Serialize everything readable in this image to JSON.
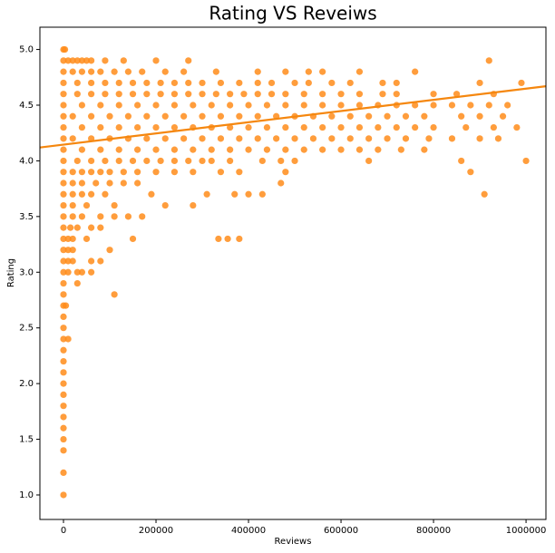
{
  "chart_data": {
    "type": "scatter",
    "title": "Rating VS Reveiws",
    "x_label": "Reviews",
    "y_label": "Rating",
    "color": "#ff8c1a",
    "x": [
      0,
      3000,
      0,
      10000,
      20000,
      30000,
      40000,
      50000,
      60000,
      90000,
      130000,
      200000,
      270000,
      920000,
      0,
      20000,
      40000,
      60000,
      80000,
      110000,
      140000,
      170000,
      220000,
      260000,
      330000,
      420000,
      480000,
      530000,
      560000,
      640000,
      760000,
      0,
      30000,
      60000,
      90000,
      120000,
      150000,
      180000,
      210000,
      240000,
      270000,
      300000,
      340000,
      380000,
      420000,
      450000,
      500000,
      530000,
      580000,
      620000,
      690000,
      720000,
      900000,
      990000,
      0,
      30000,
      60000,
      90000,
      120000,
      150000,
      180000,
      210000,
      240000,
      270000,
      300000,
      330000,
      360000,
      390000,
      420000,
      450000,
      480000,
      520000,
      560000,
      600000,
      640000,
      690000,
      720000,
      800000,
      850000,
      930000,
      0,
      40000,
      80000,
      120000,
      160000,
      200000,
      240000,
      280000,
      320000,
      360000,
      400000,
      440000,
      480000,
      520000,
      560000,
      600000,
      640000,
      680000,
      720000,
      760000,
      800000,
      840000,
      880000,
      920000,
      960000,
      0,
      20000,
      60000,
      100000,
      140000,
      180000,
      220000,
      260000,
      300000,
      340000,
      380000,
      420000,
      460000,
      500000,
      540000,
      580000,
      620000,
      660000,
      700000,
      740000,
      780000,
      860000,
      900000,
      950000,
      0,
      40000,
      80000,
      120000,
      160000,
      200000,
      240000,
      280000,
      320000,
      360000,
      400000,
      440000,
      480000,
      520000,
      560000,
      600000,
      640000,
      680000,
      720000,
      760000,
      800000,
      870000,
      930000,
      980000,
      0,
      20000,
      60000,
      100000,
      140000,
      180000,
      220000,
      260000,
      300000,
      340000,
      380000,
      420000,
      460000,
      500000,
      540000,
      580000,
      620000,
      660000,
      700000,
      740000,
      790000,
      840000,
      900000,
      940000,
      0,
      40000,
      80000,
      120000,
      160000,
      200000,
      240000,
      280000,
      320000,
      360000,
      400000,
      440000,
      480000,
      520000,
      560000,
      600000,
      640000,
      680000,
      730000,
      780000,
      0,
      30000,
      60000,
      90000,
      120000,
      150000,
      180000,
      210000,
      240000,
      270000,
      300000,
      320000,
      360000,
      430000,
      470000,
      500000,
      660000,
      860000,
      1000000,
      0,
      20000,
      40000,
      60000,
      80000,
      100000,
      130000,
      160000,
      200000,
      240000,
      280000,
      340000,
      380000,
      480000,
      880000,
      0,
      20000,
      40000,
      70000,
      100000,
      130000,
      160000,
      470000,
      0,
      20000,
      40000,
      60000,
      90000,
      190000,
      310000,
      370000,
      400000,
      430000,
      910000,
      0,
      20000,
      50000,
      110000,
      220000,
      280000,
      0,
      20000,
      40000,
      80000,
      110000,
      140000,
      170000,
      0,
      15000,
      30000,
      60000,
      80000,
      0,
      10000,
      20000,
      50000,
      150000,
      335000,
      355000,
      380000,
      0,
      10000,
      20000,
      100000,
      0,
      10000,
      20000,
      60000,
      80000,
      0,
      10000,
      30000,
      40000,
      60000,
      0,
      30000,
      0,
      110000,
      0,
      5000,
      0,
      0,
      0,
      10000,
      0,
      0,
      0,
      0,
      0,
      0,
      0,
      0,
      0,
      0,
      0,
      0
    ],
    "values": [
      5.0,
      5.0,
      4.9,
      4.9,
      4.9,
      4.9,
      4.9,
      4.9,
      4.9,
      4.9,
      4.9,
      4.9,
      4.9,
      4.9,
      4.8,
      4.8,
      4.8,
      4.8,
      4.8,
      4.8,
      4.8,
      4.8,
      4.8,
      4.8,
      4.8,
      4.8,
      4.8,
      4.8,
      4.8,
      4.8,
      4.8,
      4.7,
      4.7,
      4.7,
      4.7,
      4.7,
      4.7,
      4.7,
      4.7,
      4.7,
      4.7,
      4.7,
      4.7,
      4.7,
      4.7,
      4.7,
      4.7,
      4.7,
      4.7,
      4.7,
      4.7,
      4.7,
      4.7,
      4.7,
      4.6,
      4.6,
      4.6,
      4.6,
      4.6,
      4.6,
      4.6,
      4.6,
      4.6,
      4.6,
      4.6,
      4.6,
      4.6,
      4.6,
      4.6,
      4.6,
      4.6,
      4.6,
      4.6,
      4.6,
      4.6,
      4.6,
      4.6,
      4.6,
      4.6,
      4.6,
      4.5,
      4.5,
      4.5,
      4.5,
      4.5,
      4.5,
      4.5,
      4.5,
      4.5,
      4.5,
      4.5,
      4.5,
      4.5,
      4.5,
      4.5,
      4.5,
      4.5,
      4.5,
      4.5,
      4.5,
      4.5,
      4.5,
      4.5,
      4.5,
      4.5,
      4.4,
      4.4,
      4.4,
      4.4,
      4.4,
      4.4,
      4.4,
      4.4,
      4.4,
      4.4,
      4.4,
      4.4,
      4.4,
      4.4,
      4.4,
      4.4,
      4.4,
      4.4,
      4.4,
      4.4,
      4.4,
      4.4,
      4.4,
      4.4,
      4.3,
      4.3,
      4.3,
      4.3,
      4.3,
      4.3,
      4.3,
      4.3,
      4.3,
      4.3,
      4.3,
      4.3,
      4.3,
      4.3,
      4.3,
      4.3,
      4.3,
      4.3,
      4.3,
      4.3,
      4.3,
      4.3,
      4.3,
      4.3,
      4.2,
      4.2,
      4.2,
      4.2,
      4.2,
      4.2,
      4.2,
      4.2,
      4.2,
      4.2,
      4.2,
      4.2,
      4.2,
      4.2,
      4.2,
      4.2,
      4.2,
      4.2,
      4.2,
      4.2,
      4.2,
      4.2,
      4.2,
      4.2,
      4.1,
      4.1,
      4.1,
      4.1,
      4.1,
      4.1,
      4.1,
      4.1,
      4.1,
      4.1,
      4.1,
      4.1,
      4.1,
      4.1,
      4.1,
      4.1,
      4.1,
      4.1,
      4.1,
      4.1,
      4.0,
      4.0,
      4.0,
      4.0,
      4.0,
      4.0,
      4.0,
      4.0,
      4.0,
      4.0,
      4.0,
      4.0,
      4.0,
      4.0,
      4.0,
      4.0,
      4.0,
      4.0,
      4.0,
      3.9,
      3.9,
      3.9,
      3.9,
      3.9,
      3.9,
      3.9,
      3.9,
      3.9,
      3.9,
      3.9,
      3.9,
      3.9,
      3.9,
      3.9,
      3.8,
      3.8,
      3.8,
      3.8,
      3.8,
      3.8,
      3.8,
      3.8,
      3.7,
      3.7,
      3.7,
      3.7,
      3.7,
      3.7,
      3.7,
      3.7,
      3.7,
      3.7,
      3.7,
      3.6,
      3.6,
      3.6,
      3.6,
      3.6,
      3.6,
      3.5,
      3.5,
      3.5,
      3.5,
      3.5,
      3.5,
      3.5,
      3.4,
      3.4,
      3.4,
      3.4,
      3.4,
      3.3,
      3.3,
      3.3,
      3.3,
      3.3,
      3.3,
      3.3,
      3.3,
      3.2,
      3.2,
      3.2,
      3.2,
      3.1,
      3.1,
      3.1,
      3.1,
      3.1,
      3.0,
      3.0,
      3.0,
      3.0,
      3.0,
      2.9,
      2.9,
      2.8,
      2.8,
      2.7,
      2.7,
      2.6,
      2.5,
      2.4,
      2.4,
      2.3,
      2.2,
      2.1,
      2.0,
      1.9,
      1.8,
      1.7,
      1.6,
      1.5,
      1.4,
      1.2,
      1.0
    ],
    "regression": {
      "color": "#f5870f",
      "x": [
        -51000,
        1043000
      ],
      "values": [
        4.12,
        4.67
      ]
    },
    "xlim": [
      -51000,
      1043000
    ],
    "ylim": [
      0.78,
      5.2
    ],
    "xticks": [
      0,
      200000,
      400000,
      600000,
      800000,
      1000000
    ],
    "yticks": [
      {
        "value": 1,
        "label": "1.0"
      },
      1.5,
      {
        "value": 2,
        "label": "2.0"
      },
      2.5,
      {
        "value": 3,
        "label": "3.0"
      },
      3.5,
      {
        "value": 4,
        "label": "4.0"
      },
      4.5,
      {
        "value": 5,
        "label": "5.0"
      }
    ]
  }
}
